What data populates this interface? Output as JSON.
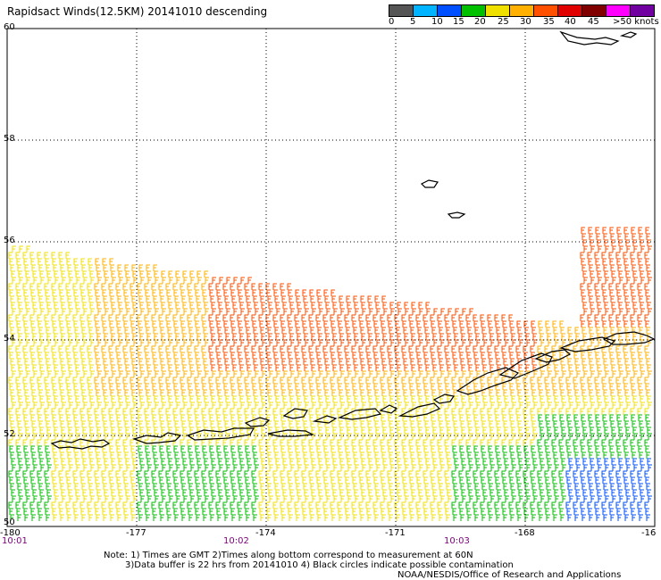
{
  "title": "Rapidsact Winds(12.5KM) 20141010 descending",
  "colorbar": {
    "labels": [
      "0",
      "5",
      "10",
      "15",
      "20",
      "25",
      "30",
      "35",
      "40",
      "45",
      ">50 knots"
    ],
    "colors": [
      "#555555",
      "#00b4ff",
      "#0050ff",
      "#00c000",
      "#f0e000",
      "#ffb000",
      "#ff5000",
      "#e00000",
      "#800000",
      "#ff00ff",
      "#7000a0"
    ]
  },
  "axes": {
    "lat_labels": [
      "60",
      "58",
      "56",
      "54",
      "52",
      "50"
    ],
    "lon_labels": [
      "-180",
      "-177",
      "-174",
      "-171",
      "-168",
      "-16"
    ]
  },
  "times": [
    "10:01",
    "10:02",
    "10:03"
  ],
  "notes": {
    "line1": "Note: 1) Times are GMT 2)Times along bottom correspond to measurement at 60N",
    "line2": "3)Data buffer is 22 hrs from 20141010 4) Black circles indicate possible contamination",
    "line3": "NOAA/NESDIS/Office of Research and Applications"
  }
}
